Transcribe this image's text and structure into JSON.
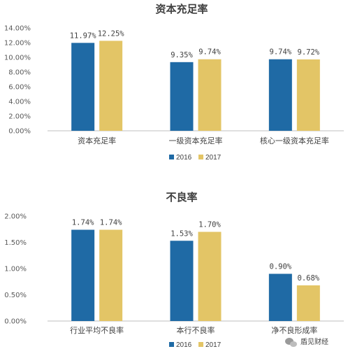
{
  "colors": {
    "s2016": "#1f6aa5",
    "s2017": "#e3c566",
    "axis": "#bfbfbf"
  },
  "chart_data": [
    {
      "type": "bar",
      "title": "资本充足率",
      "categories": [
        "资本充足率",
        "一级资本充足率",
        "核心一级资本充足率"
      ],
      "yticks": [
        "0.00%",
        "2.00%",
        "4.00%",
        "6.00%",
        "8.00%",
        "10.00%",
        "12.00%",
        "14.00%"
      ],
      "ylim": [
        0,
        14
      ],
      "series": [
        {
          "name": "2016",
          "values": [
            11.97,
            9.35,
            9.74
          ],
          "labels": [
            "11.97%",
            "9.35%",
            "9.74%"
          ]
        },
        {
          "name": "2017",
          "values": [
            12.25,
            9.74,
            9.72
          ],
          "labels": [
            "12.25%",
            "9.74%",
            "9.72%"
          ]
        }
      ],
      "legend": "bottom",
      "grid": false
    },
    {
      "type": "bar",
      "title": "不良率",
      "categories": [
        "行业平均不良率",
        "本行不良率",
        "净不良形成率"
      ],
      "yticks": [
        "0.00%",
        "0.50%",
        "1.00%",
        "1.50%",
        "2.00%"
      ],
      "ylim": [
        0,
        2
      ],
      "series": [
        {
          "name": "2016",
          "values": [
            1.74,
            1.53,
            0.9
          ],
          "labels": [
            "1.74%",
            "1.53%",
            "0.90%"
          ]
        },
        {
          "name": "2017",
          "values": [
            1.74,
            1.7,
            0.68
          ],
          "labels": [
            "1.74%",
            "1.70%",
            "0.68%"
          ]
        }
      ],
      "legend": "bottom",
      "grid": false
    }
  ],
  "watermark": {
    "text": "盾见财经",
    "icon": "wechat-bubble-icon"
  }
}
